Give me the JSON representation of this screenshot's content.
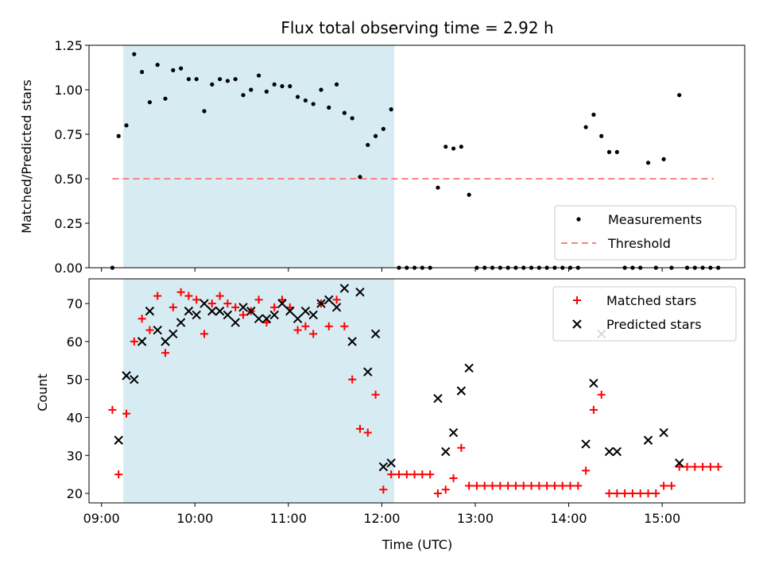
{
  "chart_data": [
    {
      "type": "scatter",
      "title": "Flux total observing time = 2.92 h",
      "xlabel": "",
      "ylabel": "Matched/Predicted stars",
      "xlim": [
        "08:52",
        "15:53"
      ],
      "ylim": [
        0,
        1.25
      ],
      "yticks": [
        0.0,
        0.25,
        0.5,
        0.75,
        1.0,
        1.25
      ],
      "ytick_labels": [
        "0.00",
        "0.25",
        "0.50",
        "0.75",
        "1.00",
        "1.25"
      ],
      "shaded_span": [
        "09:14",
        "12:08"
      ],
      "legend": {
        "position": "lower-right",
        "entries": [
          "Measurements",
          "Threshold"
        ]
      },
      "colors": {
        "measurements": "#000000",
        "threshold": "#ff8080",
        "shade": "#add8e6"
      },
      "threshold": {
        "name": "Threshold",
        "value": 0.5,
        "x_start": "09:07",
        "x_end": "15:33"
      },
      "series": [
        {
          "name": "Measurements",
          "marker": "dot",
          "points": [
            [
              "09:07",
              0.0
            ],
            [
              "09:11",
              0.74
            ],
            [
              "09:16",
              0.8
            ],
            [
              "09:21",
              1.2
            ],
            [
              "09:26",
              1.1
            ],
            [
              "09:31",
              0.93
            ],
            [
              "09:36",
              1.14
            ],
            [
              "09:41",
              0.95
            ],
            [
              "09:46",
              1.11
            ],
            [
              "09:51",
              1.12
            ],
            [
              "09:56",
              1.06
            ],
            [
              "10:01",
              1.06
            ],
            [
              "10:06",
              0.88
            ],
            [
              "10:11",
              1.03
            ],
            [
              "10:16",
              1.06
            ],
            [
              "10:21",
              1.05
            ],
            [
              "10:26",
              1.06
            ],
            [
              "10:31",
              0.97
            ],
            [
              "10:36",
              1.0
            ],
            [
              "10:41",
              1.08
            ],
            [
              "10:46",
              0.99
            ],
            [
              "10:51",
              1.03
            ],
            [
              "10:56",
              1.02
            ],
            [
              "11:01",
              1.02
            ],
            [
              "11:06",
              0.96
            ],
            [
              "11:11",
              0.94
            ],
            [
              "11:16",
              0.92
            ],
            [
              "11:21",
              1.0
            ],
            [
              "11:26",
              0.9
            ],
            [
              "11:31",
              1.03
            ],
            [
              "11:36",
              0.87
            ],
            [
              "11:41",
              0.84
            ],
            [
              "11:46",
              0.51
            ],
            [
              "11:51",
              0.69
            ],
            [
              "11:56",
              0.74
            ],
            [
              "12:01",
              0.78
            ],
            [
              "12:06",
              0.89
            ],
            [
              "12:11",
              0.0
            ],
            [
              "12:16",
              0.0
            ],
            [
              "12:21",
              0.0
            ],
            [
              "12:26",
              0.0
            ],
            [
              "12:31",
              0.0
            ],
            [
              "12:36",
              0.45
            ],
            [
              "12:41",
              0.68
            ],
            [
              "12:46",
              0.67
            ],
            [
              "12:51",
              0.68
            ],
            [
              "12:56",
              0.41
            ],
            [
              "13:01",
              0.0
            ],
            [
              "13:06",
              0.0
            ],
            [
              "13:11",
              0.0
            ],
            [
              "13:16",
              0.0
            ],
            [
              "13:21",
              0.0
            ],
            [
              "13:26",
              0.0
            ],
            [
              "13:31",
              0.0
            ],
            [
              "13:36",
              0.0
            ],
            [
              "13:41",
              0.0
            ],
            [
              "13:46",
              0.0
            ],
            [
              "13:51",
              0.0
            ],
            [
              "13:56",
              0.0
            ],
            [
              "14:01",
              0.0
            ],
            [
              "14:06",
              0.0
            ],
            [
              "14:11",
              0.79
            ],
            [
              "14:16",
              0.86
            ],
            [
              "14:21",
              0.74
            ],
            [
              "14:26",
              0.65
            ],
            [
              "14:31",
              0.65
            ],
            [
              "14:36",
              0.0
            ],
            [
              "14:41",
              0.0
            ],
            [
              "14:46",
              0.0
            ],
            [
              "14:51",
              0.59
            ],
            [
              "14:56",
              0.0
            ],
            [
              "15:01",
              0.61
            ],
            [
              "15:06",
              0.0
            ],
            [
              "15:11",
              0.97
            ],
            [
              "15:16",
              0.0
            ],
            [
              "15:21",
              0.0
            ],
            [
              "15:26",
              0.0
            ],
            [
              "15:31",
              0.0
            ],
            [
              "15:36",
              0.0
            ]
          ]
        }
      ]
    },
    {
      "type": "scatter",
      "title": "",
      "xlabel": "Time (UTC)",
      "ylabel": "Count",
      "xlim": [
        "08:52",
        "15:53"
      ],
      "ylim": [
        17.5,
        76.5
      ],
      "yticks": [
        20,
        30,
        40,
        50,
        60,
        70
      ],
      "ytick_labels": [
        "20",
        "30",
        "40",
        "50",
        "60",
        "70"
      ],
      "xticks": [
        "09:00",
        "10:00",
        "11:00",
        "12:00",
        "13:00",
        "14:00",
        "15:00"
      ],
      "xtick_labels": [
        "09:00",
        "10:00",
        "11:00",
        "12:00",
        "13:00",
        "14:00",
        "15:00"
      ],
      "shaded_span": [
        "09:14",
        "12:08"
      ],
      "legend": {
        "position": "upper-right",
        "entries": [
          "Matched stars",
          "Predicted stars"
        ]
      },
      "colors": {
        "matched": "#ff0000",
        "predicted": "#000000",
        "shade": "#add8e6"
      },
      "series": [
        {
          "name": "Matched stars",
          "marker": "plus",
          "points": [
            [
              "09:07",
              42
            ],
            [
              "09:11",
              25
            ],
            [
              "09:16",
              41
            ],
            [
              "09:21",
              60
            ],
            [
              "09:26",
              66
            ],
            [
              "09:31",
              63
            ],
            [
              "09:36",
              72
            ],
            [
              "09:41",
              57
            ],
            [
              "09:46",
              69
            ],
            [
              "09:51",
              73
            ],
            [
              "09:56",
              72
            ],
            [
              "10:01",
              71
            ],
            [
              "10:06",
              62
            ],
            [
              "10:11",
              70
            ],
            [
              "10:16",
              72
            ],
            [
              "10:21",
              70
            ],
            [
              "10:26",
              69
            ],
            [
              "10:31",
              67
            ],
            [
              "10:36",
              68
            ],
            [
              "10:41",
              71
            ],
            [
              "10:46",
              65
            ],
            [
              "10:51",
              69
            ],
            [
              "10:56",
              71
            ],
            [
              "11:01",
              69
            ],
            [
              "11:06",
              63
            ],
            [
              "11:11",
              64
            ],
            [
              "11:16",
              62
            ],
            [
              "11:21",
              70
            ],
            [
              "11:26",
              64
            ],
            [
              "11:31",
              71
            ],
            [
              "11:36",
              64
            ],
            [
              "11:41",
              50
            ],
            [
              "11:46",
              37
            ],
            [
              "11:51",
              36
            ],
            [
              "11:56",
              46
            ],
            [
              "12:01",
              21
            ],
            [
              "12:06",
              25
            ],
            [
              "12:11",
              25
            ],
            [
              "12:16",
              25
            ],
            [
              "12:21",
              25
            ],
            [
              "12:26",
              25
            ],
            [
              "12:31",
              25
            ],
            [
              "12:36",
              20
            ],
            [
              "12:41",
              21
            ],
            [
              "12:46",
              24
            ],
            [
              "12:51",
              32
            ],
            [
              "12:56",
              22
            ],
            [
              "13:01",
              22
            ],
            [
              "13:06",
              22
            ],
            [
              "13:11",
              22
            ],
            [
              "13:16",
              22
            ],
            [
              "13:21",
              22
            ],
            [
              "13:26",
              22
            ],
            [
              "13:31",
              22
            ],
            [
              "13:36",
              22
            ],
            [
              "13:41",
              22
            ],
            [
              "13:46",
              22
            ],
            [
              "13:51",
              22
            ],
            [
              "13:56",
              22
            ],
            [
              "14:01",
              22
            ],
            [
              "14:06",
              22
            ],
            [
              "14:11",
              26
            ],
            [
              "14:16",
              42
            ],
            [
              "14:21",
              46
            ],
            [
              "14:26",
              20
            ],
            [
              "14:31",
              20
            ],
            [
              "14:36",
              20
            ],
            [
              "14:41",
              20
            ],
            [
              "14:46",
              20
            ],
            [
              "14:51",
              20
            ],
            [
              "14:56",
              20
            ],
            [
              "15:01",
              22
            ],
            [
              "15:06",
              22
            ],
            [
              "15:11",
              27
            ],
            [
              "15:16",
              27
            ],
            [
              "15:21",
              27
            ],
            [
              "15:26",
              27
            ],
            [
              "15:31",
              27
            ],
            [
              "15:36",
              27
            ]
          ]
        },
        {
          "name": "Predicted stars",
          "marker": "x",
          "points": [
            [
              "09:11",
              34
            ],
            [
              "09:16",
              51
            ],
            [
              "09:21",
              50
            ],
            [
              "09:26",
              60
            ],
            [
              "09:31",
              68
            ],
            [
              "09:36",
              63
            ],
            [
              "09:41",
              60
            ],
            [
              "09:46",
              62
            ],
            [
              "09:51",
              65
            ],
            [
              "09:56",
              68
            ],
            [
              "10:01",
              67
            ],
            [
              "10:06",
              70
            ],
            [
              "10:11",
              68
            ],
            [
              "10:16",
              68
            ],
            [
              "10:21",
              67
            ],
            [
              "10:26",
              65
            ],
            [
              "10:31",
              69
            ],
            [
              "10:36",
              68
            ],
            [
              "10:41",
              66
            ],
            [
              "10:46",
              66
            ],
            [
              "10:51",
              67
            ],
            [
              "10:56",
              70
            ],
            [
              "11:01",
              68
            ],
            [
              "11:06",
              66
            ],
            [
              "11:11",
              68
            ],
            [
              "11:16",
              67
            ],
            [
              "11:21",
              70
            ],
            [
              "11:26",
              71
            ],
            [
              "11:31",
              69
            ],
            [
              "11:36",
              74
            ],
            [
              "11:41",
              60
            ],
            [
              "11:46",
              73
            ],
            [
              "11:51",
              52
            ],
            [
              "11:56",
              62
            ],
            [
              "12:01",
              27
            ],
            [
              "12:06",
              28
            ],
            [
              "12:36",
              45
            ],
            [
              "12:41",
              31
            ],
            [
              "12:46",
              36
            ],
            [
              "12:51",
              47
            ],
            [
              "12:56",
              53
            ],
            [
              "14:11",
              33
            ],
            [
              "14:16",
              49
            ],
            [
              "14:21",
              62
            ],
            [
              "14:26",
              31
            ],
            [
              "14:31",
              31
            ],
            [
              "14:51",
              34
            ],
            [
              "15:01",
              36
            ],
            [
              "15:11",
              28
            ]
          ]
        }
      ]
    }
  ]
}
